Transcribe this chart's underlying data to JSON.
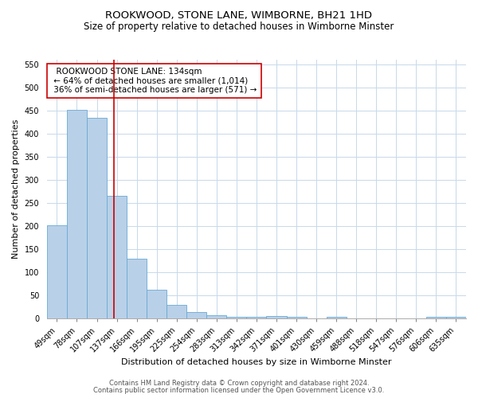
{
  "title": "ROOKWOOD, STONE LANE, WIMBORNE, BH21 1HD",
  "subtitle": "Size of property relative to detached houses in Wimborne Minster",
  "xlabel": "Distribution of detached houses by size in Wimborne Minster",
  "ylabel": "Number of detached properties",
  "categories": [
    "49sqm",
    "78sqm",
    "107sqm",
    "137sqm",
    "166sqm",
    "195sqm",
    "225sqm",
    "254sqm",
    "283sqm",
    "313sqm",
    "342sqm",
    "371sqm",
    "401sqm",
    "430sqm",
    "459sqm",
    "488sqm",
    "518sqm",
    "547sqm",
    "576sqm",
    "606sqm",
    "635sqm"
  ],
  "values": [
    202,
    452,
    435,
    265,
    130,
    62,
    30,
    15,
    7,
    5,
    5,
    6,
    5,
    0,
    5,
    0,
    0,
    0,
    0,
    5,
    5
  ],
  "bar_color": "#b8d0e8",
  "bar_edge_color": "#6aaad4",
  "grid_color": "#c8d8ea",
  "property_line_x": 2.85,
  "annotation_text": "  ROOKWOOD STONE LANE: 134sqm  \n ← 64% of detached houses are smaller (1,014)\n 36% of semi-detached houses are larger (571) →",
  "annotation_box_color": "#ffffff",
  "annotation_box_edge": "#cc0000",
  "vline_color": "#cc0000",
  "ylim": [
    0,
    560
  ],
  "yticks": [
    0,
    50,
    100,
    150,
    200,
    250,
    300,
    350,
    400,
    450,
    500,
    550
  ],
  "footer1": "Contains HM Land Registry data © Crown copyright and database right 2024.",
  "footer2": "Contains public sector information licensed under the Open Government Licence v3.0.",
  "title_fontsize": 9.5,
  "subtitle_fontsize": 8.5,
  "axis_label_fontsize": 8,
  "tick_fontsize": 7,
  "annotation_fontsize": 7.5,
  "footer_fontsize": 6
}
